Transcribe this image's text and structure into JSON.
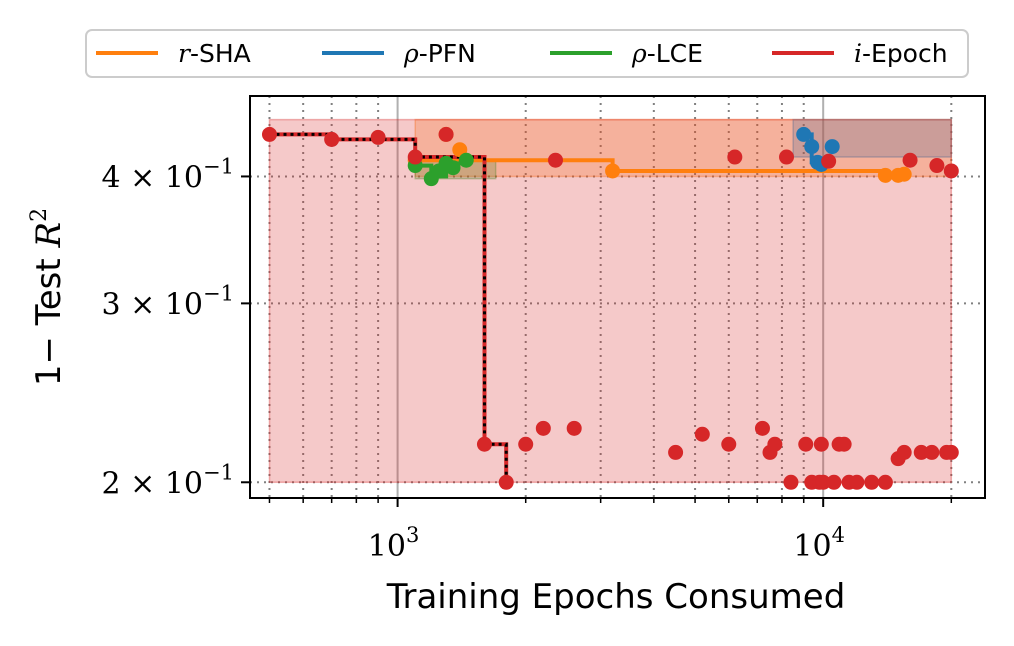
{
  "chart_data": {
    "type": "scatter",
    "xlabel": "Training Epochs Consumed",
    "ylabel": "1− Test R²",
    "ylabel_prefix": "1− Test ",
    "ylabel_var": "R",
    "ylabel_sup": "2",
    "x_scale": "log",
    "y_scale": "log",
    "xlim": [
      450,
      24000
    ],
    "ylim": [
      0.193,
      0.48
    ],
    "grid": true,
    "legend_position": "top (outside axes)",
    "x_ticks": [
      {
        "value": 1000,
        "base": "10",
        "exp": "3"
      },
      {
        "value": 10000,
        "base": "10",
        "exp": "4"
      }
    ],
    "y_ticks": [
      {
        "value": 0.2,
        "mant": "2",
        "base": "10",
        "exp": "−1"
      },
      {
        "value": 0.3,
        "mant": "3",
        "base": "10",
        "exp": "−1"
      },
      {
        "value": 0.4,
        "mant": "4",
        "base": "10",
        "exp": "−1"
      }
    ],
    "series": [
      {
        "name": "r-SHA",
        "legend_prefix": "r",
        "legend_suffix": "-SHA",
        "color": "#ff7f0e",
        "band": [
          1100,
          20000,
          0.4,
          0.455
        ],
        "step": [
          [
            1100,
            0.415
          ],
          [
            3200,
            0.415
          ],
          [
            3200,
            0.405
          ],
          [
            14000,
            0.405
          ],
          [
            14000,
            0.401
          ],
          [
            15500,
            0.401
          ]
        ],
        "points": [
          [
            1100,
            0.415
          ],
          [
            1300,
            0.44
          ],
          [
            1400,
            0.425
          ],
          [
            3200,
            0.405
          ],
          [
            14000,
            0.401
          ],
          [
            15000,
            0.401
          ],
          [
            15500,
            0.402
          ]
        ]
      },
      {
        "name": "ρ-PFN",
        "legend_prefix": "ρ",
        "legend_suffix": "-PFN",
        "color": "#1f77b4",
        "band": [
          8500,
          20000,
          0.418,
          0.455
        ],
        "step": [
          [
            9000,
            0.44
          ],
          [
            9400,
            0.44
          ],
          [
            9400,
            0.413
          ],
          [
            9900,
            0.413
          ]
        ],
        "points": [
          [
            9000,
            0.44
          ],
          [
            9400,
            0.428
          ],
          [
            9700,
            0.413
          ],
          [
            9900,
            0.411
          ],
          [
            10500,
            0.428
          ]
        ]
      },
      {
        "name": "ρ-LCE",
        "legend_prefix": "ρ",
        "legend_suffix": "-LCE",
        "color": "#2ca02c",
        "band": [
          1100,
          1700,
          0.398,
          0.415
        ],
        "step": [
          [
            1100,
            0.41
          ],
          [
            1200,
            0.41
          ],
          [
            1200,
            0.4
          ],
          [
            1300,
            0.4
          ],
          [
            1300,
            0.412
          ],
          [
            1450,
            0.412
          ]
        ],
        "points": [
          [
            1100,
            0.41
          ],
          [
            1200,
            0.398
          ],
          [
            1250,
            0.405
          ],
          [
            1300,
            0.412
          ],
          [
            1350,
            0.408
          ],
          [
            1450,
            0.415
          ]
        ]
      },
      {
        "name": "i-Epoch",
        "legend_prefix": "i",
        "legend_suffix": "-Epoch",
        "color": "#d62728",
        "band": [
          500,
          20000,
          0.2,
          0.455
        ],
        "step": [
          [
            500,
            0.44
          ],
          [
            700,
            0.44
          ],
          [
            700,
            0.435
          ],
          [
            1100,
            0.435
          ],
          [
            1100,
            0.418
          ],
          [
            1600,
            0.418
          ],
          [
            1600,
            0.218
          ],
          [
            1800,
            0.218
          ],
          [
            1800,
            0.2
          ]
        ],
        "points": [
          [
            500,
            0.44
          ],
          [
            700,
            0.435
          ],
          [
            900,
            0.437
          ],
          [
            1100,
            0.418
          ],
          [
            1300,
            0.44
          ],
          [
            1600,
            0.218
          ],
          [
            1800,
            0.2
          ],
          [
            2000,
            0.218
          ],
          [
            2200,
            0.226
          ],
          [
            2350,
            0.415
          ],
          [
            2600,
            0.226
          ],
          [
            4500,
            0.214
          ],
          [
            5200,
            0.223
          ],
          [
            6000,
            0.218
          ],
          [
            6200,
            0.418
          ],
          [
            7200,
            0.226
          ],
          [
            7500,
            0.214
          ],
          [
            7700,
            0.218
          ],
          [
            8200,
            0.418
          ],
          [
            8400,
            0.2
          ],
          [
            9100,
            0.218
          ],
          [
            9400,
            0.2
          ],
          [
            9800,
            0.2
          ],
          [
            9900,
            0.218
          ],
          [
            10000,
            0.2
          ],
          [
            10300,
            0.414
          ],
          [
            10600,
            0.2
          ],
          [
            10900,
            0.218
          ],
          [
            11200,
            0.218
          ],
          [
            11500,
            0.2
          ],
          [
            12000,
            0.2
          ],
          [
            13000,
            0.2
          ],
          [
            14000,
            0.2
          ],
          [
            15000,
            0.211
          ],
          [
            15500,
            0.214
          ],
          [
            16000,
            0.415
          ],
          [
            17000,
            0.214
          ],
          [
            18000,
            0.214
          ],
          [
            18500,
            0.41
          ],
          [
            19500,
            0.214
          ],
          [
            20000,
            0.214
          ],
          [
            20000,
            0.405
          ]
        ]
      }
    ]
  }
}
